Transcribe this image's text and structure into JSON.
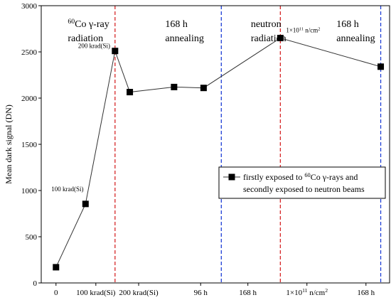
{
  "chart_data": {
    "type": "line",
    "ylabel": "Mean dark signal (DN)",
    "xlabel": "",
    "ylim": [
      0,
      3000
    ],
    "yticks": [
      0,
      500,
      1000,
      1500,
      2000,
      2500,
      3000
    ],
    "xlim": [
      -0.5,
      11.3
    ],
    "x_tick_labels": [
      {
        "x": 0,
        "label": "0"
      },
      {
        "x": 1.35,
        "label": "100 krad(Si)"
      },
      {
        "x": 2.8,
        "label": "200 krad(Si)"
      },
      {
        "x": 4.9,
        "label": "96 h"
      },
      {
        "x": 6.5,
        "label": "168 h"
      },
      {
        "x": 8.5,
        "label": "1×10¹¹ n/cm²"
      },
      {
        "x": 10.5,
        "label": "168 h"
      }
    ],
    "vlines": [
      {
        "x": 2,
        "color": "#d62728"
      },
      {
        "x": 5.6,
        "color": "#1f3fd6"
      },
      {
        "x": 7.6,
        "color": "#d62728"
      },
      {
        "x": 11,
        "color": "#1f3fd6"
      }
    ],
    "series": [
      {
        "name": "firstly exposed to ⁶⁰Co γ-rays and secondly exposed to neutron beams",
        "x": [
          0,
          1,
          2,
          2.5,
          4,
          5,
          7.6,
          11
        ],
        "y": [
          170,
          855,
          2510,
          2065,
          2120,
          2110,
          2650,
          2340
        ]
      }
    ],
    "region_labels": [
      {
        "x": 0.4,
        "y": 2770,
        "lines": [
          "⁶⁰Co γ-ray",
          "radiation"
        ]
      },
      {
        "x": 3.7,
        "y": 2770,
        "lines": [
          "168 h",
          "annealing"
        ]
      },
      {
        "x": 6.6,
        "y": 2770,
        "lines": [
          "neutron",
          "radiation"
        ]
      },
      {
        "x": 9.5,
        "y": 2770,
        "lines": [
          "168 h",
          "annealing"
        ]
      }
    ],
    "point_annotations": [
      {
        "x": 1,
        "y": 855,
        "text": "100 krad(Si)"
      },
      {
        "x": 2,
        "y": 2510,
        "text": "200 krad(Si)"
      },
      {
        "x": 7.6,
        "y": 2650,
        "text": "1×10¹¹ n/cm²"
      }
    ],
    "legend": {
      "placement": "right-middle",
      "lines": [
        "firstly exposed to ⁶⁰Co γ-rays and",
        "secondly exposed to neutron beams"
      ]
    }
  }
}
